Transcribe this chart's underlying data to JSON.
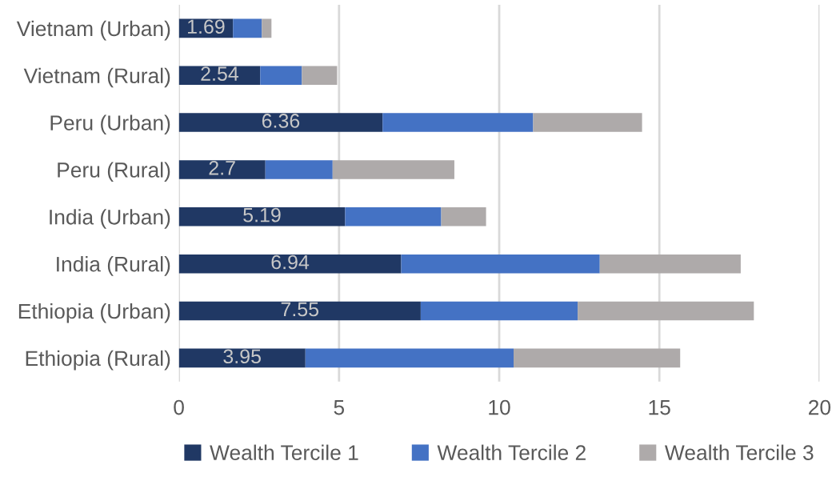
{
  "chart_data": {
    "type": "bar",
    "orientation": "horizontal",
    "stacked": true,
    "categories": [
      "Vietnam (Urban)",
      "Vietnam (Rural)",
      "Peru (Urban)",
      "Peru (Rural)",
      "India (Urban)",
      "India (Rural)",
      "Ethiopia (Urban)",
      "Ethiopia (Rural)"
    ],
    "series": [
      {
        "name": "Wealth Tercile 1",
        "color": "#203864",
        "values": [
          1.69,
          2.54,
          6.36,
          2.7,
          5.19,
          6.94,
          7.55,
          3.95
        ],
        "value_labels": [
          "1.69",
          "2.54",
          "6.36",
          "2.7",
          "5.19",
          "6.94",
          "7.55",
          "3.95"
        ]
      },
      {
        "name": "Wealth Tercile 2",
        "color": "#4472c4",
        "values": [
          0.9,
          1.3,
          4.7,
          2.1,
          3.0,
          6.2,
          4.9,
          6.5
        ]
      },
      {
        "name": "Wealth Tercile 3",
        "color": "#aeaaaa",
        "values": [
          0.3,
          1.1,
          3.4,
          3.8,
          1.4,
          4.4,
          5.5,
          5.2
        ]
      }
    ],
    "xlim": [
      0,
      20
    ],
    "xticks": [
      0,
      5,
      10,
      15,
      20
    ],
    "grid": "x",
    "legend": "bottom"
  }
}
